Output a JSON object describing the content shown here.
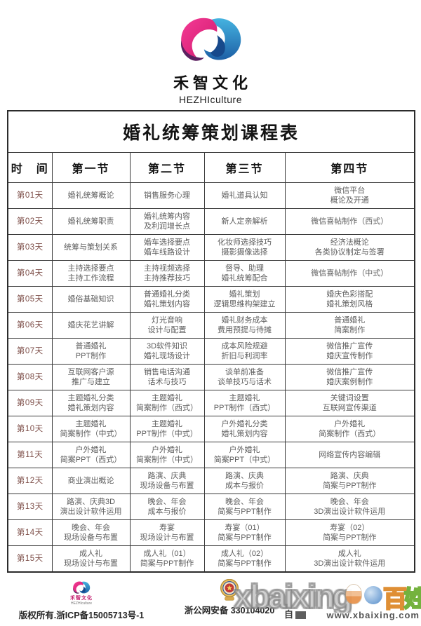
{
  "brand": {
    "logo_cn": "禾智文化",
    "logo_en": "HEZHIculture"
  },
  "schedule": {
    "title": "婚礼统筹策划课程表",
    "headers": [
      "时　间",
      "第一节",
      "第二节",
      "第三节",
      "第四节"
    ],
    "rows": [
      {
        "day": "第01天",
        "cells": [
          [
            "婚礼统筹概论"
          ],
          [
            "销售服务心理"
          ],
          [
            "婚礼道具认知"
          ],
          [
            "微信平台",
            "概论及开通"
          ]
        ]
      },
      {
        "day": "第02天",
        "cells": [
          [
            "婚礼统筹职责"
          ],
          [
            "婚礼统筹内容",
            "及利润增长点"
          ],
          [
            "新人定亲解析"
          ],
          [
            "微信喜帖制作（西式）"
          ]
        ]
      },
      {
        "day": "第03天",
        "cells": [
          [
            "统筹与策划关系"
          ],
          [
            "婚车选择要点",
            "婚车线路设计"
          ],
          [
            "化妆师选择技巧",
            "摄影摄像选择"
          ],
          [
            "经济法概论",
            "各类协议制定与签署"
          ]
        ]
      },
      {
        "day": "第04天",
        "cells": [
          [
            "主持选择要点",
            "主持工作流程"
          ],
          [
            "主持视频选择",
            "主持推荐技巧"
          ],
          [
            "督导、助理",
            "婚礼统筹配合"
          ],
          [
            "微信喜帖制作（中式）"
          ]
        ]
      },
      {
        "day": "第05天",
        "cells": [
          [
            "婚俗基础知识"
          ],
          [
            "普通婚礼分类",
            "婚礼策划内容"
          ],
          [
            "婚礼策划",
            "逻辑思维构架建立"
          ],
          [
            "婚庆色彩搭配",
            "婚礼策划风格"
          ]
        ]
      },
      {
        "day": "第06天",
        "cells": [
          [
            "婚庆花艺讲解"
          ],
          [
            "灯光音响",
            "设计与配置"
          ],
          [
            "婚礼财务成本",
            "费用预提与待摊"
          ],
          [
            "普通婚礼",
            "简案制作"
          ]
        ]
      },
      {
        "day": "第07天",
        "cells": [
          [
            "普通婚礼",
            "PPT制作"
          ],
          [
            "3D软件知识",
            "婚礼现场设计"
          ],
          [
            "成本风险规避",
            "折旧与利润率"
          ],
          [
            "微信推广宣传",
            "婚庆宣传制作"
          ]
        ]
      },
      {
        "day": "第08天",
        "cells": [
          [
            "互联网客户源",
            "推广与建立"
          ],
          [
            "销售电话沟通",
            "话术与技巧"
          ],
          [
            "谈单前准备",
            "谈单技巧与话术"
          ],
          [
            "微信推广宣传",
            "婚庆案例制作"
          ]
        ]
      },
      {
        "day": "第09天",
        "cells": [
          [
            "主题婚礼分类",
            "婚礼策划内容"
          ],
          [
            "主题婚礼",
            "简案制作（西式）"
          ],
          [
            "主题婚礼",
            "PPT制作（西式）"
          ],
          [
            "关键词设置",
            "互联网宣传渠道"
          ]
        ]
      },
      {
        "day": "第10天",
        "cells": [
          [
            "主题婚礼",
            "简案制作（中式）"
          ],
          [
            "主题婚礼",
            "PPT制作（中式）"
          ],
          [
            "户外婚礼分类",
            "婚礼策划内容"
          ],
          [
            "户外婚礼",
            "简案制作（西式）"
          ]
        ]
      },
      {
        "day": "第11天",
        "cells": [
          [
            "户外婚礼",
            "简案PPT（西式）"
          ],
          [
            "户外婚礼",
            "简案制作（中式）"
          ],
          [
            "户外婚礼",
            "简案PPT（中式）"
          ],
          [
            "网络宣传内容编辑"
          ]
        ]
      },
      {
        "day": "第12天",
        "cells": [
          [
            "商业演出概论"
          ],
          [
            "路演、庆典",
            "现场设备与布置"
          ],
          [
            "路演、庆典",
            "成本与报价"
          ],
          [
            "路演、庆典",
            "简案与PPT制作"
          ]
        ]
      },
      {
        "day": "第13天",
        "cells": [
          [
            "路演、庆典3D",
            "演出设计软件运用"
          ],
          [
            "晚会、年会",
            "成本与报价"
          ],
          [
            "晚会、年会",
            "简案与PPT制作"
          ],
          [
            "晚会、年会",
            "3D演出设计软件运用"
          ]
        ]
      },
      {
        "day": "第14天",
        "cells": [
          [
            "晚会、年会",
            "现场设备与布置"
          ],
          [
            "寿宴",
            "现场设计与布置"
          ],
          [
            "寿宴（01）",
            "简案与PPT制作"
          ],
          [
            "寿宴（02）",
            "简案与PPT制作"
          ]
        ]
      },
      {
        "day": "第15天",
        "cells": [
          [
            "成人礼",
            "现场设计与布置"
          ],
          [
            "成人礼（01）",
            "简案与PPT制作"
          ],
          [
            "成人礼（02）",
            "简案与PPT制作"
          ],
          [
            "成人礼",
            "3D演出设计软件运用"
          ]
        ]
      }
    ]
  },
  "footer": {
    "brand_cn": "禾智文化",
    "brand_en": "HEZHIculture",
    "copyright": "版权所有.浙ICP备15005713号-1",
    "police_label": "浙公网安备",
    "police_number": "330104020"
  },
  "watermark": {
    "big_text": "xbaixing",
    "char_bai": "百",
    "char_xing": "姓",
    "prefix": "自",
    "url": "www.xbaixing.com"
  },
  "colors": {
    "brand_pink": "#e02a7c",
    "brand_purple": "#5a2260",
    "brand_blue": "#2f9fd4",
    "brand_blue_dark": "#1c5ca3",
    "day_text": "#7d4e48",
    "cell_text": "#5d5d5d",
    "border": "#3a3a3a"
  }
}
